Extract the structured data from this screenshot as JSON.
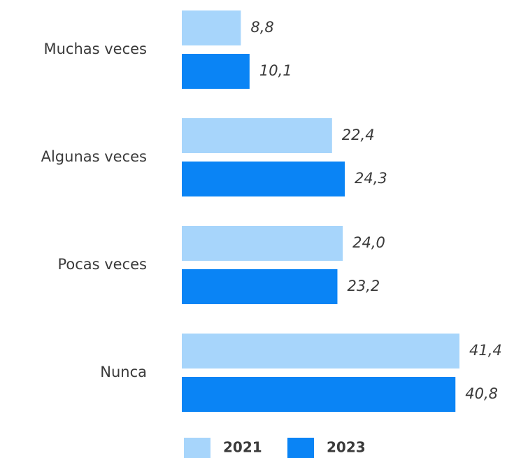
{
  "chart_data": {
    "type": "bar",
    "orientation": "horizontal",
    "categories": [
      "Muchas veces",
      "Algunas veces",
      "Pocas veces",
      "Nunca"
    ],
    "series": [
      {
        "name": "2021",
        "color": "#a7d5fb",
        "values": [
          8.8,
          22.4,
          24.0,
          41.4
        ],
        "value_labels": [
          "8,8",
          "22,4",
          "24,0",
          "41,4"
        ]
      },
      {
        "name": "2023",
        "color": "#0a84f5",
        "values": [
          10.1,
          24.3,
          23.2,
          40.8
        ],
        "value_labels": [
          "10,1",
          "24,3",
          "23,2",
          "40,8"
        ]
      }
    ],
    "legend": "bottom"
  }
}
